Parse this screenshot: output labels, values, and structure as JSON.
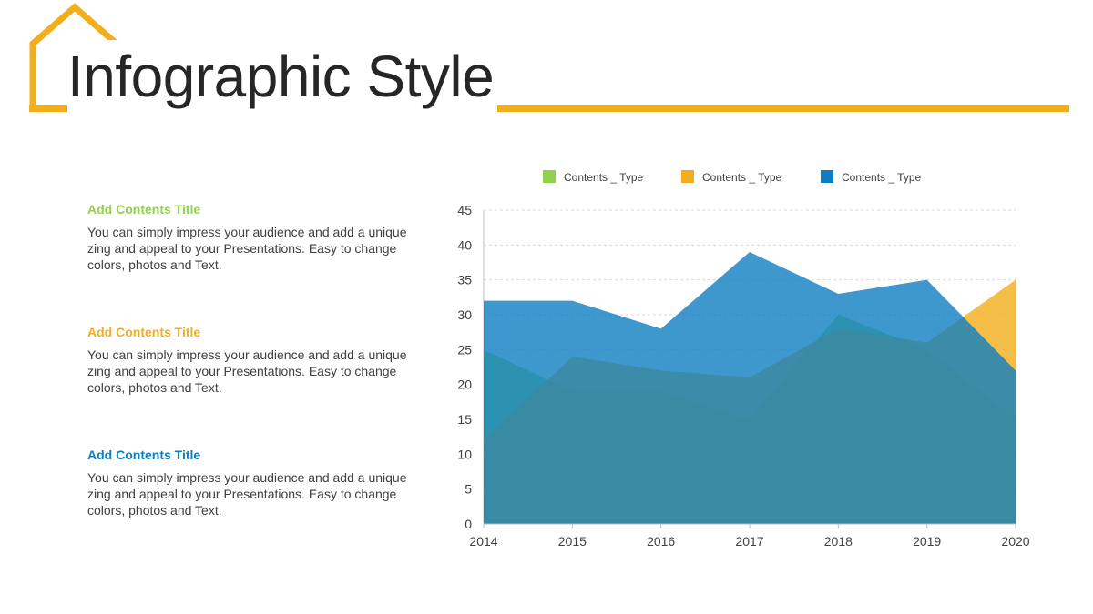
{
  "colors": {
    "accent": "#F2AE1C",
    "green": "#92D050",
    "orange": "#F2AE1C",
    "blue": "#0E7EC0",
    "title_text": "#262626"
  },
  "header": {
    "title": "Infographic Style"
  },
  "blocks": [
    {
      "title": "Add Contents Title",
      "body": "You can simply impress your audience and add a unique zing and appeal to your Presentations. Easy to change colors, photos and Text.",
      "color": "#92D050"
    },
    {
      "title": "Add Contents Title",
      "body": "You can simply impress your audience and add a unique zing and appeal to your Presentations. Easy to change colors, photos and Text.",
      "color": "#F2AE1C"
    },
    {
      "title": "Add Contents Title",
      "body": "You can simply impress your audience and add a unique zing and appeal to your Presentations. Easy to change colors, photos and Text.",
      "color": "#0E7EC0"
    }
  ],
  "chart_data": {
    "type": "area",
    "categories": [
      "2014",
      "2015",
      "2016",
      "2017",
      "2018",
      "2019",
      "2020"
    ],
    "series": [
      {
        "name": "Contents _ Type",
        "color": "#92D050",
        "values": [
          25,
          19,
          19,
          15,
          30,
          25,
          15
        ]
      },
      {
        "name": "Contents _ Type",
        "color": "#F2AE1C",
        "values": [
          12,
          24,
          22,
          21,
          28,
          26,
          35
        ]
      },
      {
        "name": "Contents _ Type",
        "color": "#0E7EC0",
        "values": [
          32,
          32,
          28,
          39,
          33,
          35,
          22
        ]
      }
    ],
    "ylim": [
      0,
      45
    ],
    "yticks": [
      0,
      5,
      10,
      15,
      20,
      25,
      30,
      35,
      40,
      45
    ],
    "grid": true,
    "legend": "top"
  }
}
